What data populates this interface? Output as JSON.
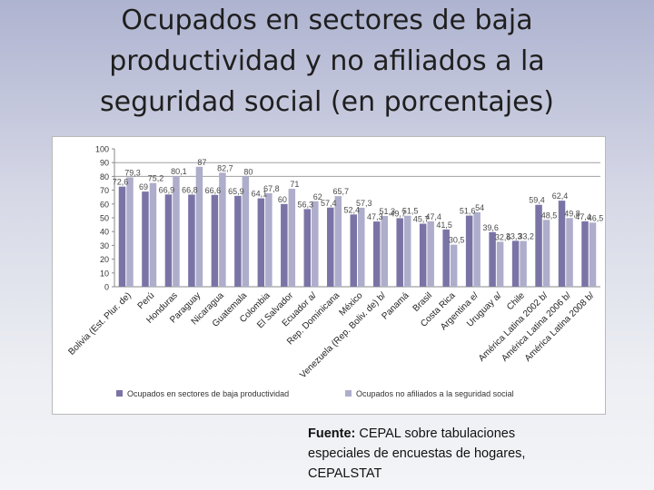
{
  "slide": {
    "title_lines": [
      "Ocupados en sectores de baja",
      "productividad y no afiliados a la",
      "seguridad social (en porcentajes)"
    ],
    "source_label": "Fuente:",
    "source_text": " CEPAL sobre tabulaciones especiales de encuestas de hogares, CEPALSTAT"
  },
  "colors": {
    "series1": "#7a74a6",
    "series2": "#aeadcb",
    "axis": "#8a8a8a",
    "grid": "#a0a0a0"
  },
  "chart_data": {
    "type": "bar",
    "title": "",
    "xlabel": "",
    "ylabel": "",
    "ylim": [
      0,
      100
    ],
    "yticks": [
      0,
      10,
      20,
      30,
      40,
      50,
      60,
      70,
      80,
      90,
      100
    ],
    "gridlines": [
      80,
      90
    ],
    "legend_position": "bottom",
    "categories": [
      "Bolivia (Est. Plur. de)",
      "Perú",
      "Honduras",
      "Paraguay",
      "Nicaragua",
      "Guatemala",
      "Colombia",
      "El Salvador",
      "Ecuador a/",
      "Rep. Dominicana",
      "México",
      "Venezuela (Rep. Boliv. de) b/",
      "Panamá",
      "Brasil",
      "Costa Rica",
      "Argentina e/",
      "Uruguay a/",
      "Chile",
      "América Latina 2002 b/",
      "América Latina 2006 b/",
      "América Latina 2008 b/"
    ],
    "series": [
      {
        "name": "Ocupados en sectores de baja productividad",
        "values": [
          72.6,
          69,
          66.9,
          66.8,
          66.6,
          65.9,
          64.1,
          60,
          56.3,
          57.4,
          52.4,
          47.3,
          49.7,
          45.7,
          41.5,
          51.6,
          39.6,
          33.3,
          59.4,
          62.4,
          47.4
        ],
        "labels": [
          "72,6",
          "69",
          "66,9",
          "66,8",
          "66,6",
          "65,9",
          "64,1",
          "60",
          "56,3",
          "57,4",
          "52,4",
          "47,3",
          "49,7",
          "45,7",
          "41,5",
          "51,6",
          "39,6",
          "33,3",
          "59,4",
          "62,4",
          "47,4"
        ]
      },
      {
        "name": "Ocupados no afiliados a la seguridad social",
        "values": [
          79.3,
          75.2,
          80.1,
          87,
          82.7,
          80,
          67.8,
          71,
          62,
          65.7,
          57.3,
          51.3,
          51.5,
          47.4,
          30.5,
          54,
          32.6,
          33.2,
          48.5,
          49.8,
          46.5
        ],
        "labels": [
          "79,3",
          "75,2",
          "80,1",
          "87",
          "82,7",
          "80",
          "67,8",
          "71",
          "62",
          "65,7",
          "57,3",
          "51,3",
          "51,5",
          "47,4",
          "30,5",
          "54",
          "32,6",
          "33,2",
          "48,5",
          "49,8",
          "46,5"
        ]
      }
    ]
  }
}
